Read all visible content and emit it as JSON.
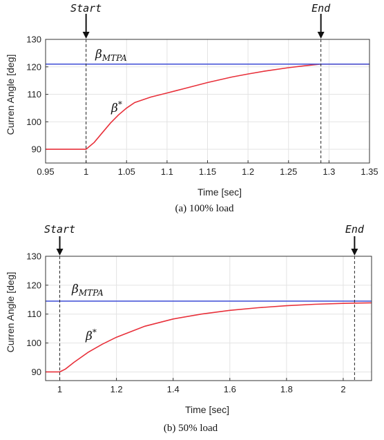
{
  "chart_data": [
    {
      "type": "line",
      "caption": "(a)  100%  load",
      "xlabel": "Time [sec]",
      "ylabel": "Curren Angle [deg]",
      "xlim": [
        0.95,
        1.35
      ],
      "ylim": [
        85,
        130
      ],
      "xticks": [
        0.95,
        1,
        1.05,
        1.1,
        1.15,
        1.2,
        1.25,
        1.3,
        1.35
      ],
      "xtick_labels": [
        "0.95",
        "1",
        "1.05",
        "1.1",
        "1.15",
        "1.2",
        "1.25",
        "1.3",
        "1.35"
      ],
      "yticks": [
        90,
        100,
        110,
        120,
        130
      ],
      "ytick_labels": [
        "90",
        "100",
        "110",
        "120",
        "130"
      ],
      "grid": true,
      "start_label": "Start",
      "end_label": "End",
      "start_x": 1.0,
      "end_x": 1.29,
      "mtpa_label": "β",
      "mtpa_sub": "MTPA",
      "mtpa_value": 121,
      "ref_label": "β",
      "ref_sup": "*",
      "series": [
        {
          "color": "#e8303a",
          "x": [
            0.95,
            1.0,
            1.01,
            1.02,
            1.03,
            1.04,
            1.05,
            1.06,
            1.08,
            1.1,
            1.12,
            1.15,
            1.18,
            1.2,
            1.22,
            1.25,
            1.27,
            1.29,
            1.31,
            1.35
          ],
          "y": [
            90,
            90,
            92.5,
            96,
            99.5,
            102.5,
            105,
            107,
            109,
            110.5,
            112,
            114.3,
            116.3,
            117.4,
            118.4,
            119.7,
            120.4,
            121,
            121,
            121
          ]
        },
        {
          "color": "#4a58d8",
          "x": [
            0.95,
            1.35
          ],
          "y": [
            121,
            121
          ]
        }
      ]
    },
    {
      "type": "line",
      "caption": "(b)  50%  load",
      "xlabel": "Time [sec]",
      "ylabel": "Curren Angle [deg]",
      "xlim": [
        0.95,
        2.1
      ],
      "ylim": [
        87,
        130
      ],
      "xticks": [
        1,
        1.2,
        1.4,
        1.6,
        1.8,
        2
      ],
      "xtick_labels": [
        "1",
        "1.2",
        "1.4",
        "1.6",
        "1.8",
        "2"
      ],
      "yticks": [
        90,
        100,
        110,
        120,
        130
      ],
      "ytick_labels": [
        "90",
        "100",
        "110",
        "120",
        "130"
      ],
      "grid": true,
      "start_label": "Start",
      "end_label": "End",
      "start_x": 1.0,
      "end_x": 2.04,
      "mtpa_label": "β",
      "mtpa_sub": "MTPA",
      "mtpa_value": 114.5,
      "ref_label": "β",
      "ref_sup": "*",
      "series": [
        {
          "color": "#e8303a",
          "x": [
            0.95,
            1.0,
            1.02,
            1.05,
            1.1,
            1.15,
            1.2,
            1.3,
            1.4,
            1.5,
            1.6,
            1.7,
            1.8,
            1.9,
            2.0,
            2.1
          ],
          "y": [
            90,
            90,
            91,
            93.3,
            96.8,
            99.6,
            102,
            105.8,
            108.3,
            110,
            111.3,
            112.2,
            112.9,
            113.4,
            113.7,
            113.9
          ]
        },
        {
          "color": "#4a58d8",
          "x": [
            0.95,
            2.1
          ],
          "y": [
            114.5,
            114.5
          ]
        }
      ]
    }
  ]
}
